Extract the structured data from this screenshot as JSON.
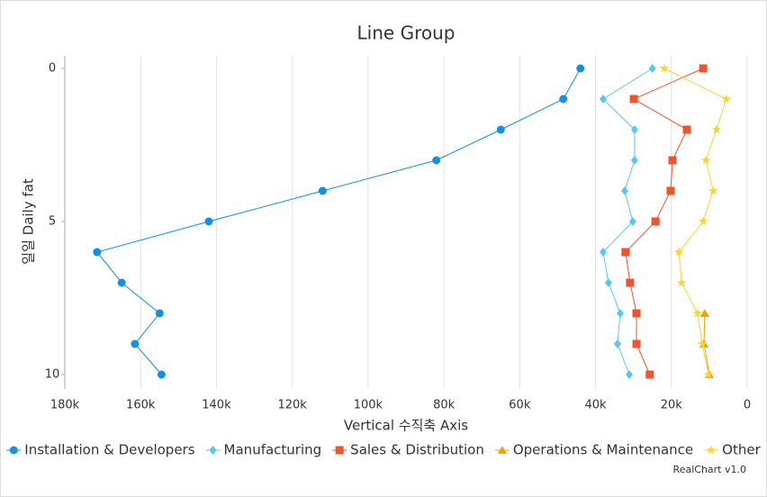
{
  "chart_data": {
    "type": "line",
    "title": "Line Group",
    "x_axis_label": "Vertical 수직축 Axis",
    "y_axis_label": "일일 Daily fat",
    "credits": "RealChart v1.0",
    "y": [
      0,
      1,
      2,
      3,
      4,
      5,
      6,
      7,
      8,
      9,
      10
    ],
    "ylim": [
      0,
      10
    ],
    "y_reversed": true,
    "yticks": [
      0,
      5,
      10
    ],
    "xlim": [
      180000,
      0
    ],
    "xticks": [
      {
        "value": 180000,
        "label": "180k"
      },
      {
        "value": 160000,
        "label": "160k"
      },
      {
        "value": 140000,
        "label": "140k"
      },
      {
        "value": 120000,
        "label": "120k"
      },
      {
        "value": 100000,
        "label": "100k"
      },
      {
        "value": 80000,
        "label": "80k"
      },
      {
        "value": 60000,
        "label": "60k"
      },
      {
        "value": 40000,
        "label": "40k"
      },
      {
        "value": 20000,
        "label": "20k"
      },
      0
    ],
    "grid": true,
    "legend": "bottom",
    "series": [
      {
        "name": "Installation & Developers",
        "color": "#1190e6",
        "marker": "circle",
        "values": [
          44000,
          48500,
          65000,
          82000,
          112000,
          142000,
          171500,
          165000,
          155000,
          161500,
          154500
        ]
      },
      {
        "name": "Manufacturing",
        "color": "#5cc6f2",
        "marker": "diamond",
        "values": [
          25000,
          38000,
          29700,
          29700,
          32300,
          30200,
          38000,
          36600,
          33500,
          34200,
          31100
        ]
      },
      {
        "name": "Sales & Distribution",
        "color": "#f0542d",
        "marker": "square",
        "values": [
          11600,
          29900,
          15900,
          19700,
          20200,
          24200,
          32100,
          30900,
          29200,
          29200,
          25700
        ]
      },
      {
        "name": "Operations & Maintenance",
        "color": "#f5a000",
        "marker": "triangle",
        "values": [
          null,
          null,
          null,
          null,
          null,
          null,
          null,
          null,
          11200,
          11400,
          10000
        ]
      },
      {
        "name": "Other",
        "color": "#f8d43a",
        "marker": "star",
        "values": [
          21900,
          5500,
          8100,
          10900,
          9000,
          11600,
          18000,
          17300,
          13100,
          11900,
          10200
        ]
      }
    ]
  }
}
